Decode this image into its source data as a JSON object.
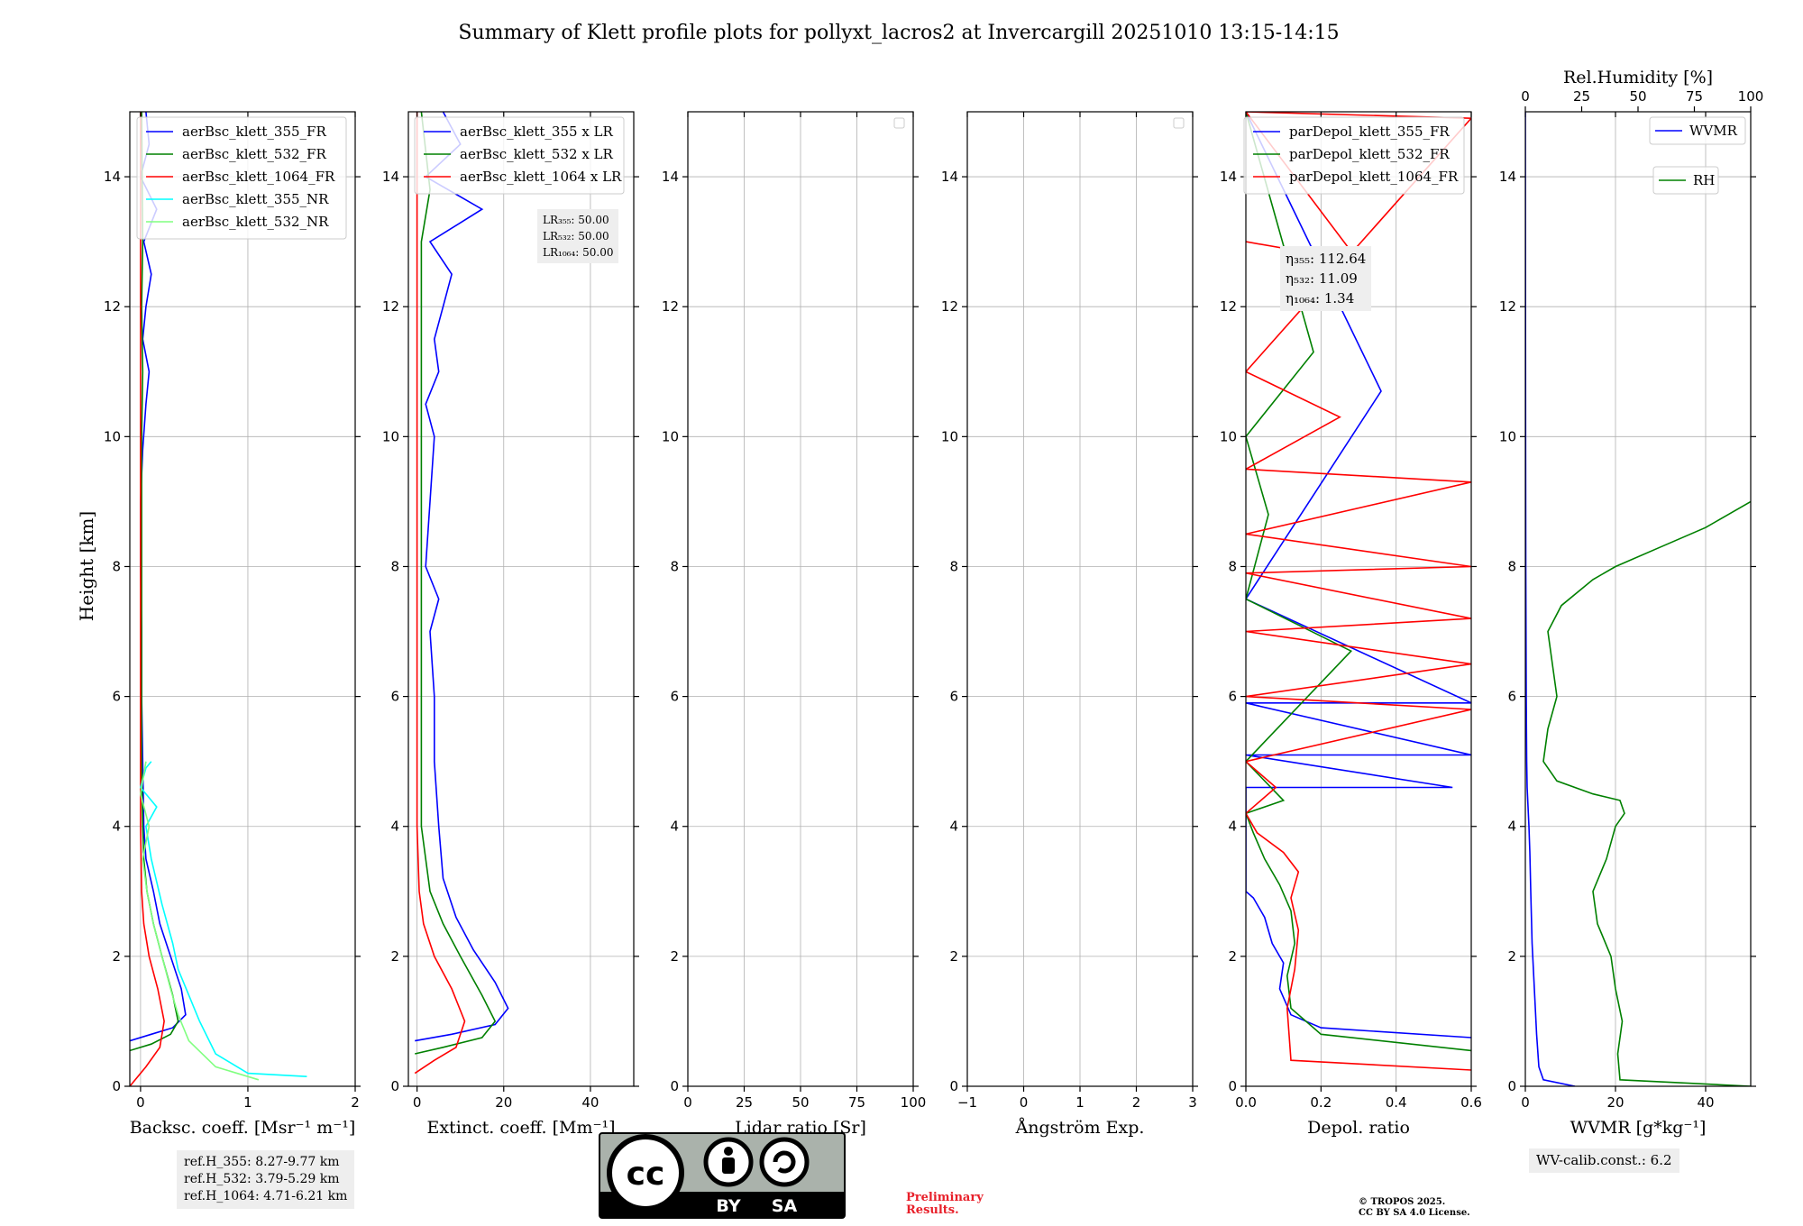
{
  "title": "Summary of Klett profile plots for pollyxt_lacros2 at Invercargill 20251010 13:15-14:15",
  "ylabel": "Height [km]",
  "colors": {
    "b355": "#0000ff",
    "b532": "#008000",
    "b1064": "#ff0000",
    "nr355": "#00ffff",
    "nr532": "#80ff80",
    "wvmr": "#0000ff",
    "rh": "#008000"
  },
  "chart_data": [
    {
      "id": "backscatter",
      "type": "line",
      "xlabel": "Backsc. coeff. [Msr⁻¹ m⁻¹]",
      "xlim": [
        -0.1,
        2
      ],
      "ylim": [
        0,
        15
      ],
      "xticks": [
        0,
        1,
        2
      ],
      "yticks": [
        0,
        2,
        4,
        6,
        8,
        10,
        12,
        14
      ],
      "legend": [
        "aerBsc_klett_355_FR",
        "aerBsc_klett_532_FR",
        "aerBsc_klett_1064_FR",
        "aerBsc_klett_355_NR",
        "aerBsc_klett_532_NR"
      ],
      "series": [
        {
          "name": "aerBsc_klett_355_FR",
          "color": "b355",
          "x": [
            -0.1,
            0.1,
            0.3,
            0.42,
            0.38,
            0.28,
            0.18,
            0.12,
            0.05,
            0.03,
            0.02,
            0.01,
            0.01,
            0.0,
            0.0,
            0.02,
            0.05,
            0.08,
            0.02,
            0.05,
            0.1,
            0.03,
            0.15,
            0.0,
            0.08,
            0.05
          ],
          "y": [
            0.7,
            0.8,
            0.9,
            1.1,
            1.5,
            2.0,
            2.5,
            3.0,
            3.5,
            4.0,
            5.0,
            6.0,
            7.0,
            8.0,
            9.0,
            9.8,
            10.5,
            11.0,
            11.5,
            12.0,
            12.5,
            13.0,
            13.5,
            14.0,
            14.5,
            15.0
          ]
        },
        {
          "name": "aerBsc_klett_532_FR",
          "color": "b532",
          "x": [
            -0.1,
            0.1,
            0.28,
            0.35,
            0.3,
            0.2,
            0.12,
            0.06,
            0.03,
            0.02,
            0.01,
            0.01,
            0.01,
            0.01,
            0.01,
            0.01,
            0.02,
            0.01,
            0.02,
            0.01
          ],
          "y": [
            0.55,
            0.65,
            0.8,
            1.0,
            1.4,
            2.0,
            2.5,
            3.0,
            3.5,
            4.0,
            5.0,
            6.0,
            7.0,
            8.0,
            9.0,
            10.0,
            11.0,
            12.0,
            13.0,
            15.0
          ]
        },
        {
          "name": "aerBsc_klett_1064_FR",
          "color": "b1064",
          "x": [
            -0.1,
            0.05,
            0.18,
            0.22,
            0.16,
            0.08,
            0.03,
            0.01,
            0.0,
            0.0,
            0.0,
            0.0,
            0.0,
            0.0,
            0.0,
            0.0
          ],
          "y": [
            0.0,
            0.3,
            0.6,
            1.0,
            1.5,
            2.0,
            2.5,
            3.0,
            4.0,
            6.0,
            8.0,
            10.0,
            12.0,
            13.0,
            14.0,
            15.0
          ]
        },
        {
          "name": "aerBsc_klett_355_NR",
          "color": "nr355",
          "x": [
            1.55,
            1.0,
            0.7,
            0.55,
            0.45,
            0.35,
            0.3,
            0.2,
            0.1,
            0.05,
            0.15,
            0.0,
            0.05,
            0.1
          ],
          "y": [
            0.15,
            0.2,
            0.5,
            1.0,
            1.4,
            1.8,
            2.2,
            2.8,
            3.5,
            4.0,
            4.3,
            4.6,
            4.9,
            5.0
          ]
        },
        {
          "name": "aerBsc_klett_532_NR",
          "color": "nr532",
          "x": [
            1.1,
            0.7,
            0.45,
            0.35,
            0.28,
            0.2,
            0.12,
            0.06,
            0.02,
            0.08,
            0.0,
            0.05
          ],
          "y": [
            0.1,
            0.3,
            0.7,
            1.1,
            1.5,
            2.0,
            2.5,
            3.0,
            3.5,
            4.0,
            4.5,
            5.0
          ]
        }
      ],
      "note": [
        "ref.H_355: 8.27-9.77 km",
        "ref.H_532: 3.79-5.29 km",
        "ref.H_1064: 4.71-6.21 km"
      ]
    },
    {
      "id": "extinction",
      "type": "line",
      "xlabel": "Extinct. coeff. [Mm⁻¹]",
      "xlim": [
        -2,
        50
      ],
      "ylim": [
        0,
        15
      ],
      "xticks": [
        0,
        20,
        40
      ],
      "yticks": [
        0,
        2,
        4,
        6,
        8,
        10,
        12,
        14
      ],
      "legend": [
        "aerBsc_klett_355 x LR",
        "aerBsc_klett_532 x LR",
        "aerBsc_klett_1064 x LR"
      ],
      "series": [
        {
          "name": "aerBsc_klett_355 x LR",
          "color": "b355",
          "x": [
            -0.5,
            8,
            18,
            21,
            18,
            13,
            9,
            6,
            5,
            4,
            4,
            3,
            5,
            2,
            3,
            4,
            2,
            5,
            4,
            6,
            8,
            3,
            15,
            2,
            10,
            6
          ],
          "y": [
            0.7,
            0.8,
            0.95,
            1.2,
            1.6,
            2.1,
            2.6,
            3.2,
            4.0,
            5.0,
            6.0,
            7.0,
            7.5,
            8.0,
            9.0,
            10.0,
            10.5,
            11.0,
            11.5,
            12.0,
            12.5,
            13.0,
            13.5,
            14.0,
            14.5,
            15.0
          ]
        },
        {
          "name": "aerBsc_klett_532 x LR",
          "color": "b532",
          "x": [
            -0.5,
            6,
            15,
            18,
            15,
            10,
            6,
            3,
            2,
            1,
            1,
            1,
            1,
            1,
            1,
            1,
            1,
            3,
            1
          ],
          "y": [
            0.5,
            0.6,
            0.75,
            1.0,
            1.4,
            2.0,
            2.5,
            3.0,
            3.5,
            4.0,
            5.0,
            6.0,
            8.0,
            10.0,
            11.0,
            12.0,
            13.0,
            13.8,
            15.0
          ]
        },
        {
          "name": "aerBsc_klett_1064 x LR",
          "color": "b1064",
          "x": [
            -0.5,
            4,
            9,
            11,
            8,
            4,
            1.5,
            0.5,
            0,
            0,
            0
          ],
          "y": [
            0.2,
            0.4,
            0.6,
            1.0,
            1.5,
            2.0,
            2.5,
            3.0,
            4.0,
            10.0,
            15.0
          ]
        }
      ],
      "note": [
        "LR₃₅₅: 50.00",
        "LR₅₃₂: 50.00",
        "LR₁₀₆₄: 50.00"
      ]
    },
    {
      "id": "lidar-ratio",
      "type": "line",
      "xlabel": "Lidar ratio [Sr]",
      "xlim": [
        0,
        100
      ],
      "ylim": [
        0,
        15
      ],
      "xticks": [
        0,
        25,
        50,
        75,
        100
      ],
      "yticks": [
        0,
        2,
        4,
        6,
        8,
        10,
        12,
        14
      ],
      "legend": [],
      "series": []
    },
    {
      "id": "angstrom",
      "type": "line",
      "xlabel": "Ångström Exp.",
      "xlim": [
        -1,
        3
      ],
      "ylim": [
        0,
        15
      ],
      "xticks": [
        -1,
        0,
        1,
        2,
        3
      ],
      "yticks": [
        0,
        2,
        4,
        6,
        8,
        10,
        12,
        14
      ],
      "legend": [],
      "series": []
    },
    {
      "id": "depol",
      "type": "line",
      "xlabel": "Depol. ratio",
      "xlim": [
        0,
        0.6
      ],
      "ylim": [
        0,
        15
      ],
      "xticks": [
        0.0,
        0.2,
        0.4,
        0.6
      ],
      "yticks": [
        0,
        2,
        4,
        6,
        8,
        10,
        12,
        14
      ],
      "legend": [
        "parDepol_klett_355_FR",
        "parDepol_klett_532_FR",
        "parDepol_klett_1064_FR"
      ],
      "series": [
        {
          "name": "parDepol_klett_355_FR",
          "color": "b355",
          "x": [
            0.6,
            0.2,
            0.12,
            0.09,
            0.1,
            0.07,
            0.05,
            0.02,
            0.0,
            0.0,
            0.55,
            0.0,
            0.6,
            0.0,
            0.6,
            0.0,
            0.36,
            0.0
          ],
          "y": [
            0.75,
            0.9,
            1.1,
            1.5,
            1.9,
            2.2,
            2.6,
            2.9,
            3.0,
            4.6,
            4.6,
            5.1,
            5.1,
            5.9,
            5.9,
            7.5,
            10.7,
            15.0
          ]
        },
        {
          "name": "parDepol_klett_532_FR",
          "color": "b532",
          "x": [
            0.6,
            0.2,
            0.12,
            0.11,
            0.13,
            0.12,
            0.09,
            0.05,
            0.02,
            0.0,
            0.1,
            0.0,
            0.28,
            0.0,
            0.06,
            0.0,
            0.18,
            0.0
          ],
          "y": [
            0.55,
            0.8,
            1.2,
            1.7,
            2.2,
            2.7,
            3.1,
            3.5,
            3.9,
            4.2,
            4.4,
            5.0,
            6.7,
            7.5,
            8.8,
            10.0,
            11.3,
            15.0
          ]
        },
        {
          "name": "parDepol_klett_1064_FR",
          "color": "b1064",
          "x": [
            0.6,
            0.12,
            0.11,
            0.13,
            0.14,
            0.12,
            0.14,
            0.1,
            0.03,
            0.0,
            0.08,
            0.0,
            0.6,
            0.0,
            0.6,
            0.0,
            0.6,
            0.0,
            0.6,
            0.0,
            0.6,
            0.0,
            0.25,
            0.0,
            0.6,
            0.0,
            0.3,
            0.0
          ],
          "y": [
            0.25,
            0.4,
            1.2,
            1.8,
            2.4,
            2.9,
            3.3,
            3.6,
            3.9,
            4.2,
            4.6,
            5.0,
            5.8,
            6.0,
            6.5,
            7.0,
            7.2,
            7.9,
            8.0,
            8.5,
            9.3,
            9.5,
            10.3,
            11.0,
            14.9,
            15.0,
            12.7,
            13.0
          ]
        }
      ],
      "note": [
        "η₃₅₅: 112.64",
        "η₅₃₂: 11.09",
        "η₁₀₆₄: 1.34"
      ]
    },
    {
      "id": "wvmr",
      "type": "line",
      "xlabel": "WVMR [g*kg⁻¹]",
      "xlim": [
        0,
        50
      ],
      "ylim": [
        0,
        15
      ],
      "xticks": [
        0,
        20,
        40
      ],
      "yticks": [
        0,
        2,
        4,
        6,
        8,
        10,
        12,
        14
      ],
      "x2label": "Rel.Humidity [%]",
      "x2lim": [
        0,
        100
      ],
      "x2ticks": [
        0,
        25,
        50,
        75,
        100
      ],
      "legend": [
        "WVMR",
        "RH"
      ],
      "series": [
        {
          "name": "WVMR",
          "color": "wvmr",
          "axis": "x",
          "x": [
            11,
            4,
            3,
            2.5,
            2,
            1.5,
            1.2,
            1,
            0.8,
            0.6,
            0.4,
            0.3,
            0.2,
            0.1,
            0.05,
            0.0
          ],
          "y": [
            0.0,
            0.1,
            0.3,
            0.8,
            1.5,
            2.2,
            3.0,
            3.6,
            4.0,
            4.3,
            4.6,
            5.0,
            6.0,
            8.0,
            10.0,
            15.0
          ]
        },
        {
          "name": "RH",
          "color": "rh",
          "axis": "x2",
          "x": [
            100,
            42,
            41,
            43,
            40,
            38,
            32,
            30,
            36,
            40,
            44,
            42,
            30,
            14,
            8,
            10,
            14,
            12,
            10,
            16,
            30,
            40,
            60,
            80,
            90,
            100
          ],
          "y": [
            0.0,
            0.1,
            0.5,
            1.0,
            1.5,
            2.0,
            2.5,
            3.0,
            3.5,
            4.0,
            4.2,
            4.4,
            4.5,
            4.7,
            5.0,
            5.5,
            6.0,
            6.5,
            7.0,
            7.4,
            7.8,
            8.0,
            8.3,
            8.6,
            8.8,
            9.0
          ]
        }
      ],
      "note": [
        "WV-calib.const.: 6.2"
      ]
    }
  ],
  "license": {
    "cc": "cc",
    "by": "BY",
    "sa": "SA"
  },
  "preliminary": [
    "Preliminary",
    "Results."
  ],
  "copyright": [
    "© TROPOS 2025.",
    "CC BY SA 4.0 License."
  ]
}
